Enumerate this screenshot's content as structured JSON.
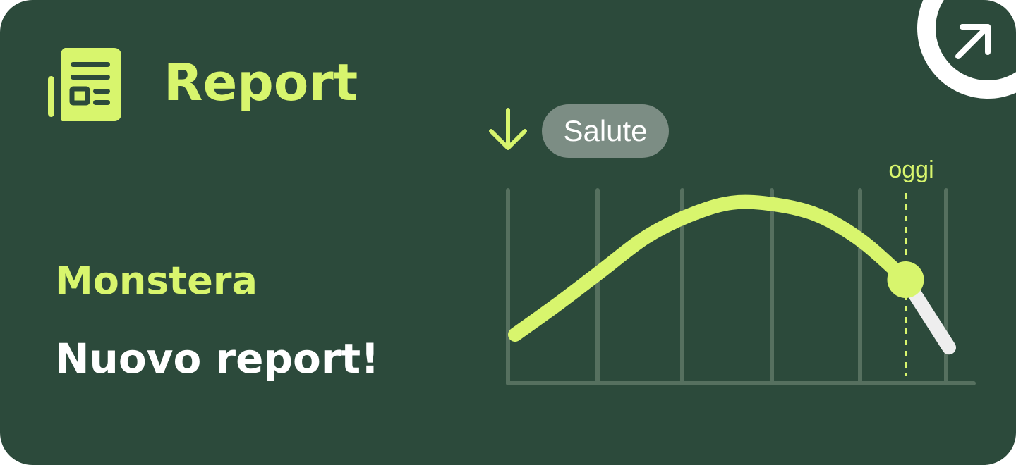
{
  "card": {
    "title": "Report",
    "plant_name": "Monstera",
    "message": "Nuovo report!",
    "open_icon": "arrow-up-right-icon",
    "report_icon": "newspaper-icon"
  },
  "chart_filter": {
    "label": "Salute",
    "sort_icon": "arrow-down-icon"
  },
  "chart_data": {
    "type": "line",
    "title": "",
    "xlabel": "",
    "ylabel": "",
    "today_label": "oggi",
    "x": [
      0,
      1,
      2,
      3,
      4,
      5,
      6,
      7,
      8,
      9,
      10
    ],
    "series": [
      {
        "values": [
          0.25,
          0.42,
          0.6,
          0.78,
          0.9,
          0.97,
          0.96,
          0.9,
          0.76,
          0.55,
          0.18
        ]
      }
    ],
    "today_index": 9,
    "grid": "vertical",
    "colors": {
      "past": "#d8f56d",
      "future": "#eeeeee",
      "axis": "#56705f"
    }
  },
  "colors": {
    "background": "#2c4a3b",
    "accent": "#d8f56d",
    "pill": "#7c8d84",
    "text": "#ffffff"
  }
}
